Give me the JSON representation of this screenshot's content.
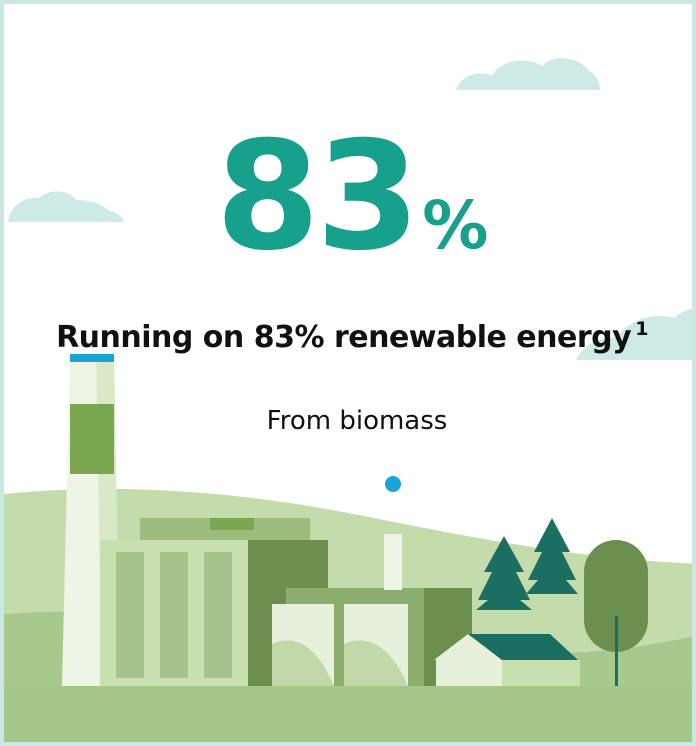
{
  "stat": {
    "value": "83",
    "unit": "%"
  },
  "headline": {
    "text": "Running on 83% renewable energy",
    "footnote": "1"
  },
  "subtitle": "From biomass",
  "colors": {
    "accent": "#17a08c",
    "border": "#c9e8e4",
    "cloud": "#cdeae6",
    "hill_light": "#b5d39b",
    "hill_dark": "#a3c88a",
    "building_dark": "#6a8f4e",
    "building_mid": "#8bad6d",
    "building_light": "#c8dfb0",
    "tree_teal": "#1b6f62",
    "dot_blue": "#1aa3d8"
  },
  "illustration": {
    "icons": [
      "cloud-icon",
      "power-plant-icon",
      "chimney-icon",
      "pine-tree-icon",
      "round-tree-icon",
      "house-icon",
      "steam-dot-icon"
    ]
  }
}
